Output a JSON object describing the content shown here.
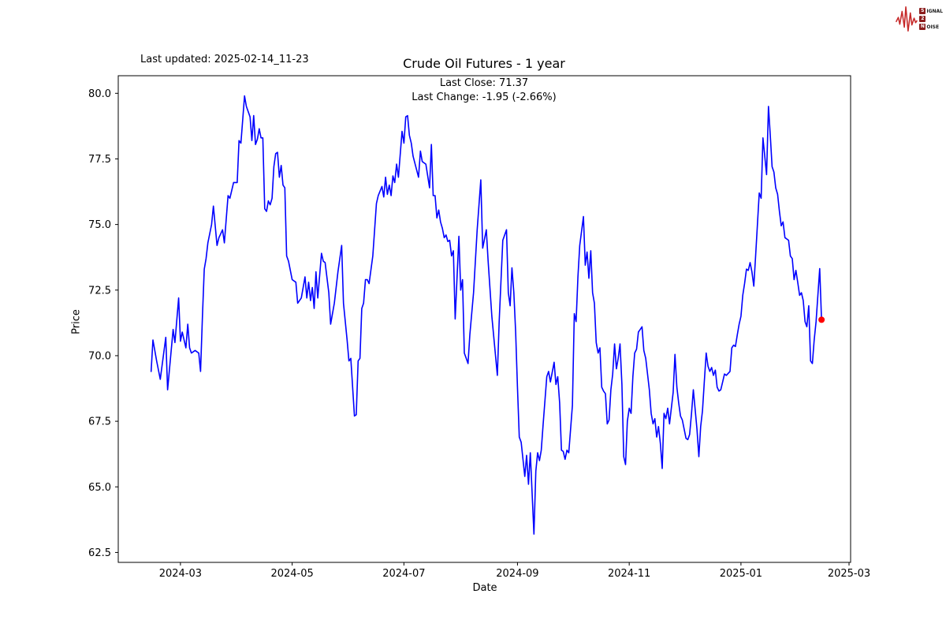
{
  "header": {
    "last_updated": "Last updated: 2025-02-14_11-23"
  },
  "logo": {
    "rows": [
      {
        "badge": "S",
        "rest": "IGNAL"
      },
      {
        "badge": "2",
        "rest": ""
      },
      {
        "badge": "N",
        "rest": "OISE"
      }
    ],
    "wave_color": "#c62828",
    "badge_color": "#8b1d1d"
  },
  "chart_data": {
    "type": "line",
    "title": "Crude Oil Futures - 1 year",
    "last_close_text": "Last Close: 71.37",
    "last_change_text": "Last Change: -1.95 (-2.66%)",
    "last_close": 71.37,
    "last_change": -1.95,
    "last_change_pct": -2.66,
    "xlabel": "Date",
    "ylabel": "Price",
    "line_color": "#0000ff",
    "marker_color": "#ff0000",
    "grid": false,
    "ylim": [
      62.1,
      80.67
    ],
    "xlim_dates": [
      "2024-01-28",
      "2025-03-03"
    ],
    "y_ticks": [
      62.5,
      65.0,
      67.5,
      70.0,
      72.5,
      75.0,
      77.5,
      80.0
    ],
    "x_ticks": [
      {
        "label": "2024-03",
        "date": "2024-03-01"
      },
      {
        "label": "2024-05",
        "date": "2024-05-01"
      },
      {
        "label": "2024-07",
        "date": "2024-07-01"
      },
      {
        "label": "2024-09",
        "date": "2024-09-01"
      },
      {
        "label": "2024-11",
        "date": "2024-11-01"
      },
      {
        "label": "2025-01",
        "date": "2025-01-01"
      },
      {
        "label": "2025-03",
        "date": "2025-03-01"
      }
    ],
    "series": [
      {
        "name": "Crude Oil Futures",
        "dates": [
          "2024-02-14",
          "2024-02-15",
          "2024-02-17",
          "2024-02-19",
          "2024-02-22",
          "2024-02-23",
          "2024-02-26",
          "2024-02-27",
          "2024-02-29",
          "2024-03-01",
          "2024-03-02",
          "2024-03-04",
          "2024-03-05",
          "2024-03-06",
          "2024-03-07",
          "2024-03-09",
          "2024-03-11",
          "2024-03-12",
          "2024-03-13",
          "2024-03-14",
          "2024-03-15",
          "2024-03-16",
          "2024-03-18",
          "2024-03-19",
          "2024-03-21",
          "2024-03-22",
          "2024-03-24",
          "2024-03-25",
          "2024-03-27",
          "2024-03-28",
          "2024-03-30",
          "2024-04-01",
          "2024-04-02",
          "2024-04-03",
          "2024-04-05",
          "2024-04-06",
          "2024-04-08",
          "2024-04-09",
          "2024-04-10",
          "2024-04-11",
          "2024-04-12",
          "2024-04-13",
          "2024-04-14",
          "2024-04-15",
          "2024-04-16",
          "2024-04-17",
          "2024-04-18",
          "2024-04-19",
          "2024-04-20",
          "2024-04-21",
          "2024-04-22",
          "2024-04-23",
          "2024-04-24",
          "2024-04-25",
          "2024-04-26",
          "2024-04-27",
          "2024-04-28",
          "2024-04-29",
          "2024-05-01",
          "2024-05-03",
          "2024-05-04",
          "2024-05-06",
          "2024-05-08",
          "2024-05-09",
          "2024-05-10",
          "2024-05-11",
          "2024-05-12",
          "2024-05-13",
          "2024-05-14",
          "2024-05-15",
          "2024-05-17",
          "2024-05-18",
          "2024-05-19",
          "2024-05-21",
          "2024-05-22",
          "2024-05-24",
          "2024-05-26",
          "2024-05-28",
          "2024-05-29",
          "2024-05-31",
          "2024-06-01",
          "2024-06-02",
          "2024-06-04",
          "2024-06-05",
          "2024-06-06",
          "2024-06-07",
          "2024-06-08",
          "2024-06-09",
          "2024-06-10",
          "2024-06-11",
          "2024-06-12",
          "2024-06-14",
          "2024-06-15",
          "2024-06-16",
          "2024-06-17",
          "2024-06-19",
          "2024-06-20",
          "2024-06-21",
          "2024-06-22",
          "2024-06-23",
          "2024-06-24",
          "2024-06-25",
          "2024-06-26",
          "2024-06-27",
          "2024-06-28",
          "2024-06-30",
          "2024-07-01",
          "2024-07-02",
          "2024-07-03",
          "2024-07-04",
          "2024-07-05",
          "2024-07-06",
          "2024-07-09",
          "2024-07-10",
          "2024-07-11",
          "2024-07-13",
          "2024-07-15",
          "2024-07-16",
          "2024-07-17",
          "2024-07-18",
          "2024-07-19",
          "2024-07-20",
          "2024-07-21",
          "2024-07-22",
          "2024-07-23",
          "2024-07-24",
          "2024-07-25",
          "2024-07-26",
          "2024-07-27",
          "2024-07-28",
          "2024-07-29",
          "2024-07-31",
          "2024-08-01",
          "2024-08-02",
          "2024-08-03",
          "2024-08-04",
          "2024-08-05",
          "2024-08-06",
          "2024-08-08",
          "2024-08-10",
          "2024-08-12",
          "2024-08-13",
          "2024-08-15",
          "2024-08-16",
          "2024-08-18",
          "2024-08-21",
          "2024-08-22",
          "2024-08-24",
          "2024-08-26",
          "2024-08-27",
          "2024-08-28",
          "2024-08-29",
          "2024-08-30",
          "2024-08-31",
          "2024-09-01",
          "2024-09-02",
          "2024-09-03",
          "2024-09-05",
          "2024-09-06",
          "2024-09-07",
          "2024-09-08",
          "2024-09-10",
          "2024-09-11",
          "2024-09-12",
          "2024-09-13",
          "2024-09-14",
          "2024-09-15",
          "2024-09-16",
          "2024-09-17",
          "2024-09-18",
          "2024-09-19",
          "2024-09-21",
          "2024-09-22",
          "2024-09-23",
          "2024-09-24",
          "2024-09-25",
          "2024-09-26",
          "2024-09-27",
          "2024-09-28",
          "2024-09-29",
          "2024-10-01",
          "2024-10-02",
          "2024-10-03",
          "2024-10-04",
          "2024-10-05",
          "2024-10-07",
          "2024-10-08",
          "2024-10-09",
          "2024-10-10",
          "2024-10-11",
          "2024-10-12",
          "2024-10-13",
          "2024-10-14",
          "2024-10-15",
          "2024-10-16",
          "2024-10-17",
          "2024-10-18",
          "2024-10-19",
          "2024-10-20",
          "2024-10-21",
          "2024-10-22",
          "2024-10-23",
          "2024-10-24",
          "2024-10-25",
          "2024-10-26",
          "2024-10-27",
          "2024-10-28",
          "2024-10-29",
          "2024-10-30",
          "2024-10-31",
          "2024-11-01",
          "2024-11-02",
          "2024-11-03",
          "2024-11-04",
          "2024-11-05",
          "2024-11-06",
          "2024-11-07",
          "2024-11-08",
          "2024-11-09",
          "2024-11-10",
          "2024-11-11",
          "2024-11-12",
          "2024-11-13",
          "2024-11-14",
          "2024-11-15",
          "2024-11-16",
          "2024-11-17",
          "2024-11-18",
          "2024-11-19",
          "2024-11-20",
          "2024-11-21",
          "2024-11-22",
          "2024-11-23",
          "2024-11-25",
          "2024-11-26",
          "2024-11-27",
          "2024-11-28",
          "2024-11-29",
          "2024-11-30",
          "2024-12-02",
          "2024-12-03",
          "2024-12-04",
          "2024-12-05",
          "2024-12-06",
          "2024-12-08",
          "2024-12-09",
          "2024-12-10",
          "2024-12-11",
          "2024-12-12",
          "2024-12-13",
          "2024-12-14",
          "2024-12-15",
          "2024-12-16",
          "2024-12-17",
          "2024-12-18",
          "2024-12-19",
          "2024-12-20",
          "2024-12-21",
          "2024-12-22",
          "2024-12-23",
          "2024-12-24",
          "2024-12-26",
          "2024-12-27",
          "2024-12-28",
          "2024-12-29",
          "2024-12-30",
          "2024-12-31",
          "2025-01-01",
          "2025-01-02",
          "2025-01-03",
          "2025-01-04",
          "2025-01-05",
          "2025-01-06",
          "2025-01-07",
          "2025-01-08",
          "2025-01-09",
          "2025-01-10",
          "2025-01-11",
          "2025-01-12",
          "2025-01-13",
          "2025-01-14",
          "2025-01-15",
          "2025-01-16",
          "2025-01-17",
          "2025-01-18",
          "2025-01-19",
          "2025-01-20",
          "2025-01-21",
          "2025-01-22",
          "2025-01-23",
          "2025-01-24",
          "2025-01-25",
          "2025-01-27",
          "2025-01-28",
          "2025-01-29",
          "2025-01-30",
          "2025-01-31",
          "2025-02-01",
          "2025-02-02",
          "2025-02-03",
          "2025-02-04",
          "2025-02-05",
          "2025-02-06",
          "2025-02-07",
          "2025-02-08",
          "2025-02-09",
          "2025-02-10",
          "2025-02-11",
          "2025-02-13",
          "2025-02-14"
        ],
        "prices": [
          69.4,
          70.6,
          69.8,
          69.1,
          70.7,
          68.7,
          71.0,
          70.5,
          72.2,
          70.55,
          70.9,
          70.3,
          71.2,
          70.3,
          70.1,
          70.2,
          70.1,
          69.4,
          71.5,
          73.3,
          73.7,
          74.3,
          75.0,
          75.7,
          74.2,
          74.5,
          74.8,
          74.3,
          76.1,
          76.0,
          76.6,
          76.6,
          78.2,
          78.1,
          79.9,
          79.5,
          79.1,
          78.2,
          79.15,
          78.05,
          78.25,
          78.65,
          78.3,
          78.3,
          75.6,
          75.5,
          75.9,
          75.75,
          76.0,
          77.2,
          77.7,
          77.75,
          76.8,
          77.25,
          76.5,
          76.4,
          73.8,
          73.6,
          72.9,
          72.8,
          72.0,
          72.2,
          73.0,
          72.2,
          72.8,
          72.1,
          72.6,
          71.8,
          73.2,
          72.2,
          73.9,
          73.6,
          73.55,
          72.4,
          71.2,
          72.0,
          73.2,
          74.2,
          72.0,
          70.6,
          69.8,
          69.9,
          67.7,
          67.75,
          69.8,
          69.9,
          71.8,
          72.0,
          72.9,
          72.9,
          72.75,
          73.8,
          74.8,
          75.8,
          76.1,
          76.45,
          76.05,
          76.8,
          76.15,
          76.5,
          76.1,
          76.85,
          76.6,
          77.3,
          76.8,
          78.55,
          78.1,
          79.1,
          79.15,
          78.4,
          78.1,
          77.6,
          76.8,
          77.8,
          77.4,
          77.3,
          76.4,
          78.05,
          76.1,
          76.1,
          75.25,
          75.55,
          75.1,
          74.85,
          74.5,
          74.6,
          74.35,
          74.4,
          73.8,
          74.0,
          71.4,
          74.55,
          72.5,
          72.9,
          70.1,
          69.9,
          69.7,
          70.8,
          72.4,
          74.8,
          76.7,
          74.1,
          74.8,
          73.6,
          71.5,
          69.25,
          71.3,
          74.4,
          74.8,
          72.4,
          71.9,
          73.35,
          72.4,
          70.9,
          68.8,
          66.9,
          66.7,
          65.4,
          66.2,
          65.1,
          66.3,
          63.2,
          65.6,
          66.3,
          66.0,
          66.4,
          67.4,
          68.3,
          69.2,
          69.4,
          69.0,
          69.75,
          68.9,
          69.2,
          68.2,
          66.4,
          66.35,
          66.05,
          66.4,
          66.3,
          68.1,
          71.6,
          71.3,
          73.0,
          74.2,
          75.3,
          73.45,
          73.95,
          72.95,
          74.0,
          72.4,
          72.0,
          70.5,
          70.1,
          70.3,
          68.8,
          68.65,
          68.55,
          67.4,
          67.55,
          68.7,
          69.3,
          70.45,
          69.5,
          69.9,
          70.45,
          68.9,
          66.15,
          65.85,
          67.5,
          68.0,
          67.8,
          69.2,
          70.1,
          70.25,
          70.9,
          71.0,
          71.1,
          70.2,
          69.9,
          69.3,
          68.7,
          67.8,
          67.4,
          67.6,
          66.9,
          67.3,
          66.65,
          65.7,
          67.8,
          67.6,
          68.0,
          67.4,
          68.6,
          70.05,
          68.8,
          68.2,
          67.7,
          67.55,
          66.85,
          66.8,
          67.0,
          67.8,
          68.7,
          67.2,
          66.15,
          67.3,
          67.9,
          69.0,
          70.1,
          69.6,
          69.4,
          69.55,
          69.25,
          69.45,
          68.8,
          68.65,
          68.7,
          69.0,
          69.3,
          69.25,
          69.4,
          70.3,
          70.4,
          70.35,
          70.8,
          71.2,
          71.5,
          72.3,
          72.75,
          73.3,
          73.25,
          73.55,
          73.2,
          72.65,
          73.8,
          75.0,
          76.2,
          76.0,
          78.3,
          77.6,
          76.9,
          79.5,
          78.4,
          77.2,
          77.0,
          76.4,
          76.15,
          75.5,
          74.95,
          75.1,
          74.5,
          74.4,
          73.8,
          73.7,
          72.9,
          73.25,
          72.8,
          72.3,
          72.4,
          72.1,
          71.3,
          71.1,
          71.9,
          69.8,
          69.7,
          70.6,
          71.3,
          73.32,
          71.37
        ]
      }
    ]
  }
}
